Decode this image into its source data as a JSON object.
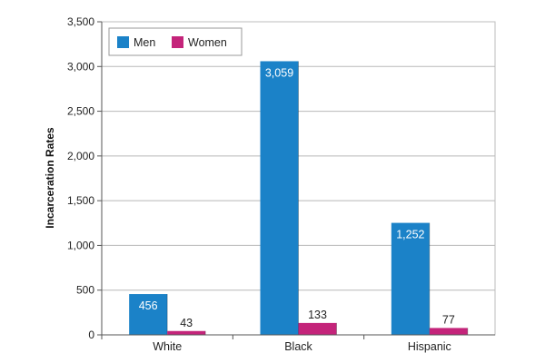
{
  "chart_data": {
    "type": "bar",
    "categories": [
      "White",
      "Black",
      "Hispanic"
    ],
    "series": [
      {
        "name": "Men",
        "values": [
          456,
          3059,
          1252
        ],
        "labels": [
          "456",
          "3,059",
          "1,252"
        ],
        "color": "#1b82c8"
      },
      {
        "name": "Women",
        "values": [
          43,
          133,
          77
        ],
        "labels": [
          "43",
          "133",
          "77"
        ],
        "color": "#c4247a"
      }
    ],
    "ylabel": "Incarceration Rates",
    "ylim": [
      0,
      3500
    ],
    "yticks": [
      0,
      500,
      1000,
      1500,
      2000,
      2500,
      3000,
      3500
    ],
    "ytick_labels": [
      "0",
      "500",
      "1,000",
      "1,500",
      "2,000",
      "2,500",
      "3,000",
      "3,500"
    ],
    "grid": true,
    "legend": "top-left"
  }
}
